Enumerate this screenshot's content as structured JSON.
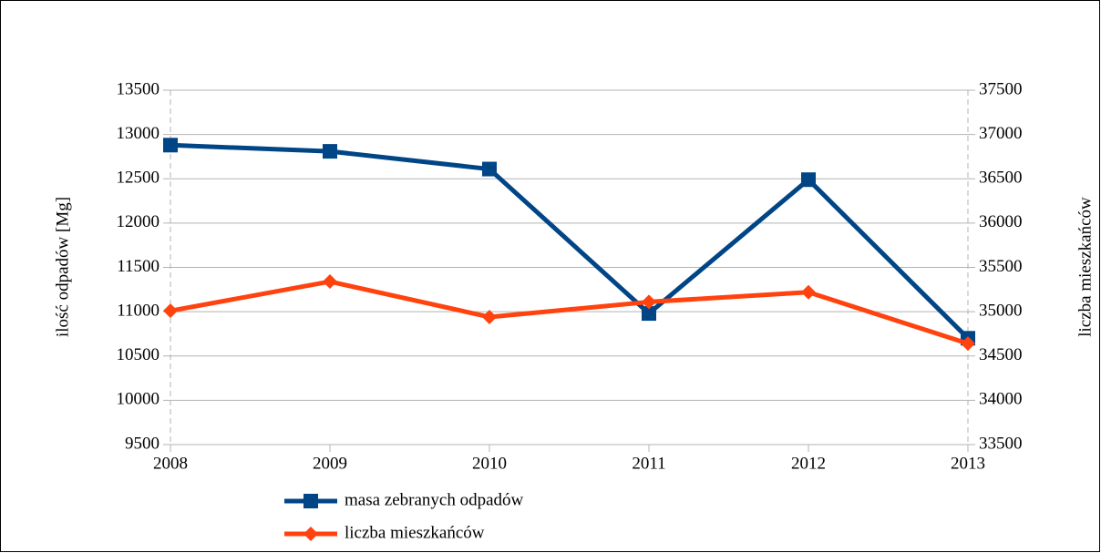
{
  "chart_data": {
    "type": "line",
    "categories": [
      "2008",
      "2009",
      "2010",
      "2011",
      "2012",
      "2013"
    ],
    "series": [
      {
        "name": "masa zebranych odpadów",
        "color": "#004586",
        "marker": "square",
        "values": [
          12880,
          12810,
          12610,
          10980,
          12490,
          10700
        ]
      },
      {
        "name": "liczba mieszkańców",
        "color": "#ff420e",
        "marker": "diamond",
        "axis": "y2",
        "values": [
          35010,
          35340,
          34940,
          35110,
          35220,
          34640
        ]
      }
    ],
    "ylabel": "ilość odpadów [Mg]",
    "y2label": "liczba mieszkańców",
    "ylim": [
      9500,
      13500
    ],
    "yticks": [
      9500,
      10000,
      10500,
      11000,
      11500,
      12000,
      12500,
      13000,
      13500
    ],
    "y2lim": [
      33500,
      37500
    ],
    "y2ticks": [
      33500,
      34000,
      34500,
      35000,
      35500,
      36000,
      36500,
      37000,
      37500
    ],
    "grid": true,
    "legend": "bottom"
  }
}
